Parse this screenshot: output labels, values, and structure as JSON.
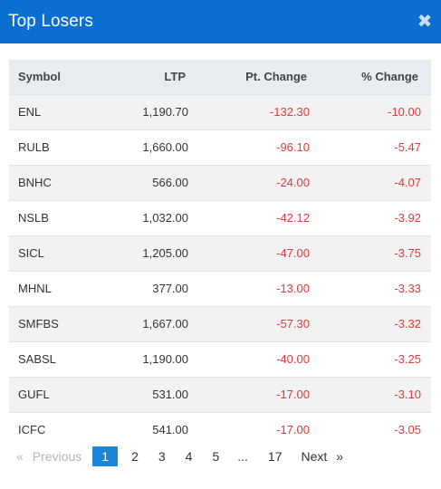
{
  "header": {
    "title": "Top Losers",
    "close_glyph": "✖"
  },
  "table": {
    "columns": [
      "Symbol",
      "LTP",
      "Pt. Change",
      "% Change"
    ],
    "rows": [
      {
        "symbol": "ENL",
        "ltp": "1,190.70",
        "pt_change": "-132.30",
        "pct_change": "-10.00"
      },
      {
        "symbol": "RULB",
        "ltp": "1,660.00",
        "pt_change": "-96.10",
        "pct_change": "-5.47"
      },
      {
        "symbol": "BNHC",
        "ltp": "566.00",
        "pt_change": "-24.00",
        "pct_change": "-4.07"
      },
      {
        "symbol": "NSLB",
        "ltp": "1,032.00",
        "pt_change": "-42.12",
        "pct_change": "-3.92"
      },
      {
        "symbol": "SICL",
        "ltp": "1,205.00",
        "pt_change": "-47.00",
        "pct_change": "-3.75"
      },
      {
        "symbol": "MHNL",
        "ltp": "377.00",
        "pt_change": "-13.00",
        "pct_change": "-3.33"
      },
      {
        "symbol": "SMFBS",
        "ltp": "1,667.00",
        "pt_change": "-57.30",
        "pct_change": "-3.32"
      },
      {
        "symbol": "SABSL",
        "ltp": "1,190.00",
        "pt_change": "-40.00",
        "pct_change": "-3.25"
      },
      {
        "symbol": "GUFL",
        "ltp": "531.00",
        "pt_change": "-17.00",
        "pct_change": "-3.10"
      },
      {
        "symbol": "ICFC",
        "ltp": "541.00",
        "pt_change": "-17.00",
        "pct_change": "-3.05"
      }
    ]
  },
  "pagination": {
    "prev_arrow": "«",
    "prev_label": "Previous",
    "pages": [
      "1",
      "2",
      "3",
      "4",
      "5"
    ],
    "active_page": "1",
    "ellipsis": "...",
    "last_page": "17",
    "next_label": "Next",
    "next_arrow": "»"
  },
  "colors": {
    "header_bg": "#0a6fd0",
    "negative": "#e03a3a",
    "active_page": "#1a84d8"
  }
}
